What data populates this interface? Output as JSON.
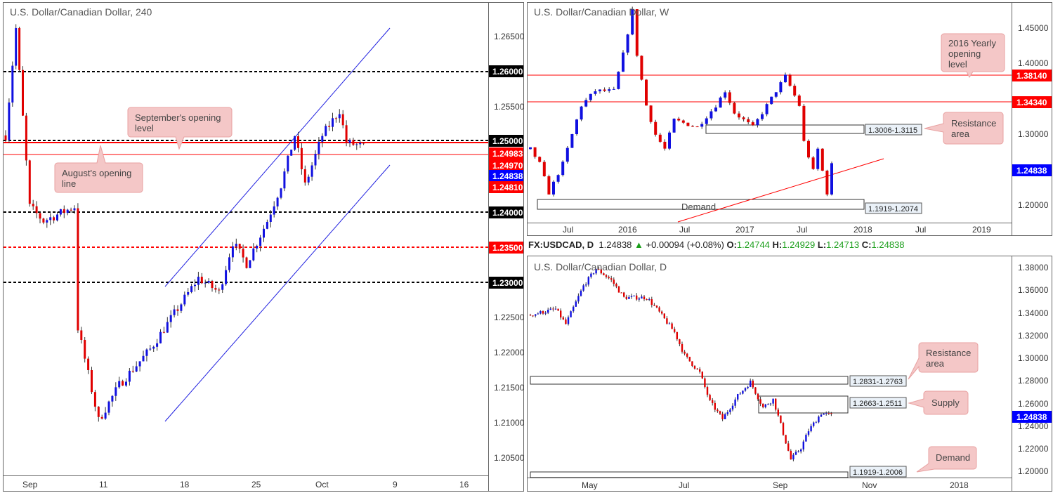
{
  "info_bar": {
    "symbol": "FX:USDCAD, D",
    "last": "1.24838",
    "arrow": "▲",
    "change": "+0.00094 (+0.08%)",
    "o_label": "O:",
    "o": "1.24744",
    "h_label": "H:",
    "h": "1.24929",
    "l_label": "L:",
    "l": "1.24713",
    "c_label": "C:",
    "c": "1.24838"
  },
  "colors": {
    "up": "#1010e0",
    "down": "#e00000",
    "level_red": "#ff0000",
    "badge_blue": "#0000ff",
    "badge_black": "#000000"
  },
  "chart_data": [
    {
      "type": "candlestick",
      "title": "U.S. Dollar/Canadian Dollar, 240",
      "ylim": [
        1.2025,
        1.2685
      ],
      "yticks": [
        "1.26500",
        "1.25500",
        "1.22500",
        "1.22000",
        "1.21500",
        "1.21000",
        "1.20500"
      ],
      "xticks": [
        "Sep",
        "11",
        "18",
        "25",
        "Oct",
        "9",
        "16"
      ],
      "badges": [
        {
          "label": "1.26000",
          "color": "#000000"
        },
        {
          "label": "1.25000",
          "color": "#000000"
        },
        {
          "label": "1.24983",
          "color": "#ff0000"
        },
        {
          "label": "1.24970",
          "color": "#ff0000"
        },
        {
          "label": "1.24838",
          "color": "#0000ff"
        },
        {
          "label": "1.24810",
          "color": "#ff0000"
        },
        {
          "label": "1.24000",
          "color": "#000000"
        },
        {
          "label": "1.23500",
          "color": "#ff0000"
        },
        {
          "label": "1.23000",
          "color": "#000000"
        }
      ],
      "callouts": [
        {
          "text": [
            "September's opening",
            "level"
          ]
        },
        {
          "text": [
            "August's opening",
            "line"
          ]
        }
      ],
      "bars": 105,
      "waypoints": [
        [
          0,
          1.25
        ],
        [
          3,
          1.265
        ],
        [
          7,
          1.24
        ],
        [
          11,
          1.238
        ],
        [
          20,
          1.24
        ],
        [
          21,
          1.223
        ],
        [
          27,
          1.21
        ],
        [
          33,
          1.215
        ],
        [
          42,
          1.22
        ],
        [
          56,
          1.23
        ],
        [
          62,
          1.228
        ],
        [
          66,
          1.235
        ],
        [
          70,
          1.232
        ],
        [
          76,
          1.238
        ],
        [
          80,
          1.243
        ],
        [
          84,
          1.25
        ],
        [
          87,
          1.243
        ],
        [
          92,
          1.25
        ],
        [
          97,
          1.2535
        ],
        [
          99,
          1.249
        ],
        [
          104,
          1.2484
        ]
      ]
    },
    {
      "type": "candlestick",
      "title": "U.S. Dollar/Canadian Dollar, W",
      "ylim": [
        1.17,
        1.47
      ],
      "yticks": [
        "1.45000",
        "1.40000",
        "1.35000",
        "1.30000",
        "1.25000",
        "1.20000"
      ],
      "xticks": [
        "Jul",
        "2016",
        "Jul",
        "2017",
        "Jul",
        "2018",
        "Jul",
        "2019"
      ],
      "badges": [
        {
          "label": "1.38140",
          "color": "#ff0000"
        },
        {
          "label": "1.34340",
          "color": "#ff0000"
        },
        {
          "label": "1.24838",
          "color": "#0000ff"
        }
      ],
      "zones": [
        {
          "label": "1.3006-1.3115"
        },
        {
          "label": "1.1919-1.2074",
          "name": "Demand"
        }
      ],
      "callouts": [
        {
          "text": [
            "2016 Yearly",
            "opening",
            "level"
          ]
        },
        {
          "text": [
            "Resistance",
            "area"
          ]
        }
      ],
      "bars": 66,
      "waypoints": [
        [
          0,
          1.27
        ],
        [
          2,
          1.25
        ],
        [
          4,
          1.21
        ],
        [
          7,
          1.25
        ],
        [
          11,
          1.33
        ],
        [
          14,
          1.35
        ],
        [
          18,
          1.35
        ],
        [
          20,
          1.4
        ],
        [
          22,
          1.46
        ],
        [
          23,
          1.4
        ],
        [
          25,
          1.33
        ],
        [
          27,
          1.29
        ],
        [
          29,
          1.27
        ],
        [
          31,
          1.31
        ],
        [
          36,
          1.3
        ],
        [
          40,
          1.33
        ],
        [
          42,
          1.35
        ],
        [
          44,
          1.32
        ],
        [
          48,
          1.3
        ],
        [
          52,
          1.34
        ],
        [
          55,
          1.37
        ],
        [
          58,
          1.33
        ],
        [
          59,
          1.28
        ],
        [
          61,
          1.24
        ],
        [
          62,
          1.27
        ],
        [
          63,
          1.24
        ],
        [
          64,
          1.21
        ],
        [
          65,
          1.2484
        ]
      ]
    },
    {
      "type": "candlestick",
      "title": "U.S. Dollar/Canadian Dollar, D",
      "ylim": [
        1.195,
        1.385
      ],
      "yticks": [
        "1.38000",
        "1.36000",
        "1.34000",
        "1.32000",
        "1.30000",
        "1.28000",
        "1.26000",
        "1.24000",
        "1.22000",
        "1.20000"
      ],
      "xticks": [
        "May",
        "Jul",
        "Sep",
        "Nov",
        "2018"
      ],
      "badges": [
        {
          "label": "1.24838",
          "color": "#0000ff"
        }
      ],
      "zones": [
        {
          "label": "1.2831-1.2763"
        },
        {
          "label": "1.2663-1.2511"
        },
        {
          "label": "1.1919-1.2006"
        }
      ],
      "callouts": [
        {
          "text": [
            "Resistance",
            "area"
          ]
        },
        {
          "text": [
            "Supply"
          ]
        },
        {
          "text": [
            "Demand"
          ]
        }
      ],
      "bars": 120,
      "waypoints": [
        [
          0,
          1.335
        ],
        [
          10,
          1.34
        ],
        [
          14,
          1.327
        ],
        [
          21,
          1.36
        ],
        [
          26,
          1.375
        ],
        [
          32,
          1.365
        ],
        [
          37,
          1.35
        ],
        [
          46,
          1.35
        ],
        [
          50,
          1.34
        ],
        [
          57,
          1.32
        ],
        [
          61,
          1.3
        ],
        [
          67,
          1.285
        ],
        [
          71,
          1.26
        ],
        [
          76,
          1.245
        ],
        [
          82,
          1.265
        ],
        [
          87,
          1.277
        ],
        [
          92,
          1.255
        ],
        [
          96,
          1.262
        ],
        [
          99,
          1.24
        ],
        [
          103,
          1.21
        ],
        [
          107,
          1.22
        ],
        [
          110,
          1.235
        ],
        [
          115,
          1.25
        ],
        [
          119,
          1.2484
        ]
      ]
    }
  ]
}
